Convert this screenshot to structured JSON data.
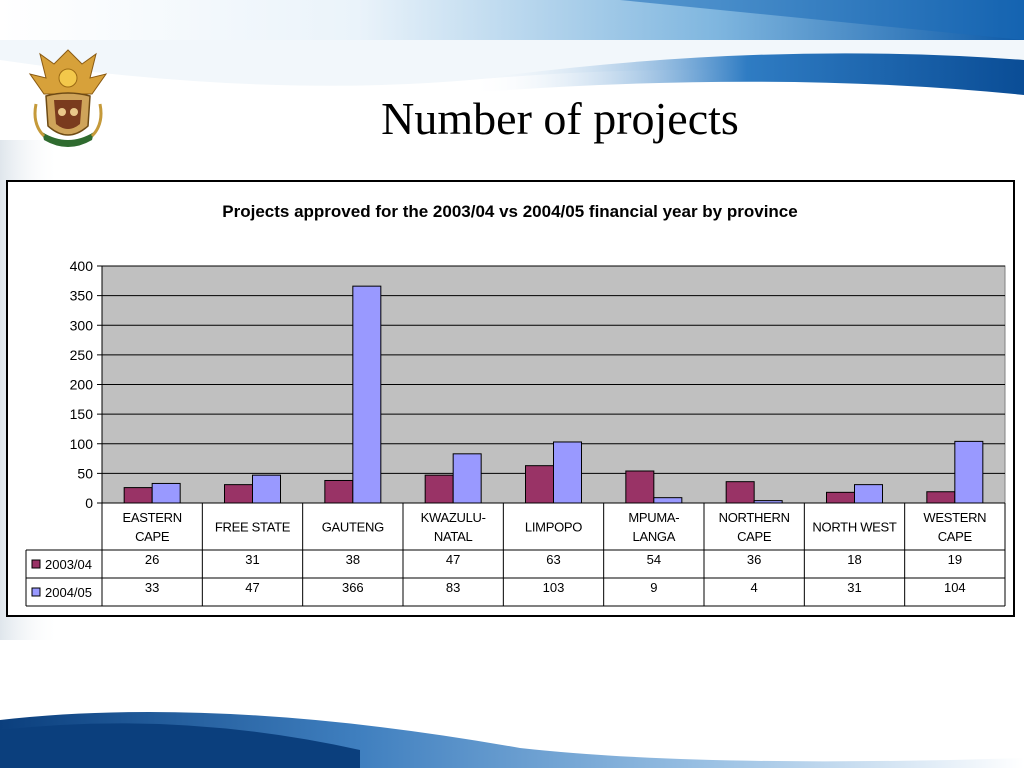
{
  "slide": {
    "title": "Number of projects"
  },
  "chart_data": {
    "type": "bar",
    "title": "Projects approved for the 2003/04 vs 2004/05 financial year by province",
    "xlabel": "",
    "ylabel": "",
    "ylim": [
      0,
      400
    ],
    "yticks": [
      "0",
      "50",
      "100",
      "150",
      "200",
      "250",
      "300",
      "350",
      "400"
    ],
    "categories": [
      [
        "EASTERN",
        "CAPE"
      ],
      [
        "FREE STATE"
      ],
      [
        "GAUTENG"
      ],
      [
        "KWAZULU-",
        "NATAL"
      ],
      [
        "LIMPOPO"
      ],
      [
        "MPUMA-",
        "LANGA"
      ],
      [
        "NORTHERN",
        "CAPE"
      ],
      [
        "NORTH WEST"
      ],
      [
        "WESTERN",
        "CAPE"
      ]
    ],
    "series": [
      {
        "name": "2003/04",
        "color": "#993366",
        "values": [
          26,
          31,
          38,
          47,
          63,
          54,
          36,
          18,
          19
        ]
      },
      {
        "name": "2004/05",
        "color": "#9999ff",
        "values": [
          33,
          47,
          366,
          83,
          103,
          9,
          4,
          31,
          104
        ]
      }
    ],
    "grid": true,
    "plot_background": "#c0c0c0",
    "data_table": true
  }
}
